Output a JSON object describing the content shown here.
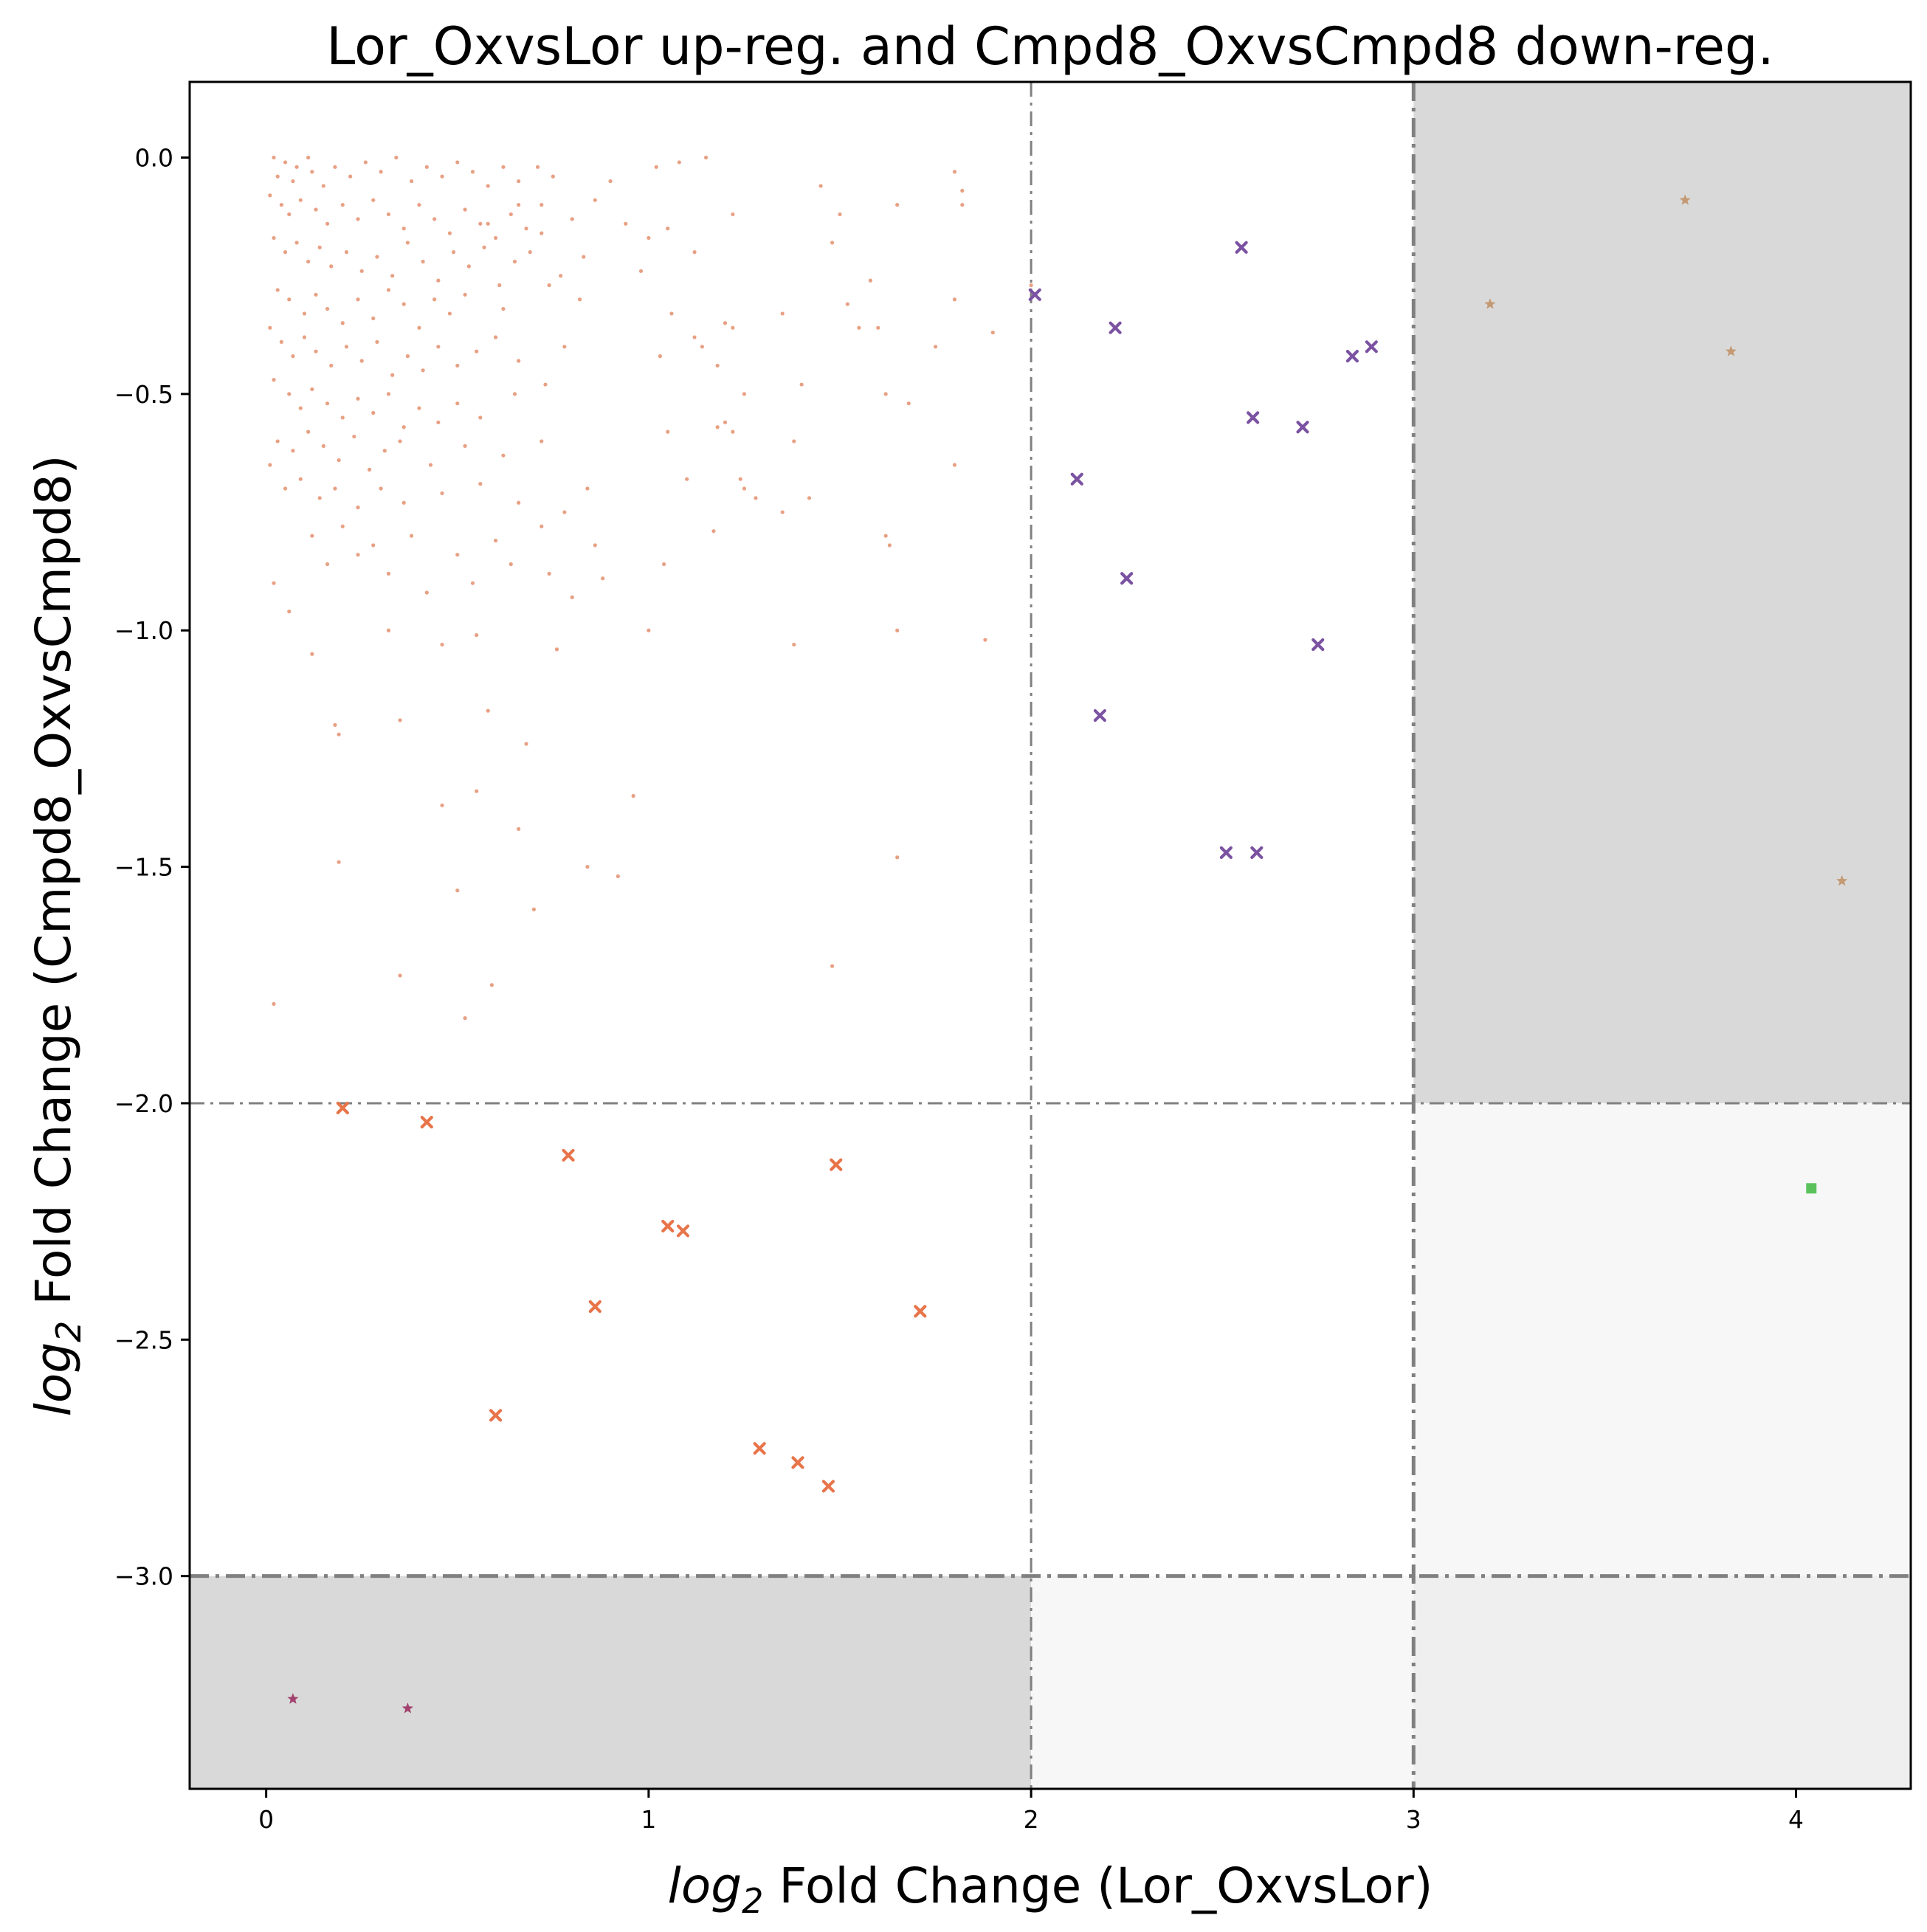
{
  "chart_data": {
    "type": "scatter",
    "title": "Lor_OxvsLor up-reg. and Cmpd8_OxvsCmpd8 down-reg.",
    "xlabel_prefix": "log",
    "xlabel_sub": "2",
    "xlabel_rest": " Fold Change (Lor_OxvsLor)",
    "ylabel_prefix": "log",
    "ylabel_sub": "2",
    "ylabel_rest": " Fold Change (Cmpd8_OxvsCmpd8)",
    "xlim": [
      -0.2,
      4.3
    ],
    "ylim": [
      -3.45,
      0.16
    ],
    "xticks": [
      0,
      1,
      2,
      3,
      4
    ],
    "xtick_labels": [
      "0",
      "1",
      "2",
      "3",
      "4"
    ],
    "yticks": [
      0.0,
      -0.5,
      -1.0,
      -1.5,
      -2.0,
      -2.5,
      -3.0
    ],
    "ytick_labels": [
      "0.0",
      "−0.5",
      "−1.0",
      "−1.5",
      "−2.0",
      "−2.5",
      "−3.0"
    ],
    "grid": false,
    "regions": [
      {
        "x": [
          3,
          4.3
        ],
        "y": [
          -2,
          0.16
        ],
        "color": "#d9d9d9"
      },
      {
        "x": [
          -0.2,
          2
        ],
        "y": [
          -3.45,
          -3
        ],
        "color": "#d9d9d9"
      },
      {
        "x": [
          3,
          4.3
        ],
        "y": [
          -3,
          -2
        ],
        "color": "#f7f7f7"
      },
      {
        "x": [
          2,
          3
        ],
        "y": [
          -3.45,
          -3
        ],
        "color": "#f7f7f7"
      },
      {
        "x": [
          3,
          4.3
        ],
        "y": [
          -3.45,
          -3
        ],
        "color": "#efefef"
      }
    ],
    "threshold_lines": [
      {
        "axis": "x",
        "value": 2,
        "style": "thin"
      },
      {
        "axis": "x",
        "value": 3,
        "style": "thick"
      },
      {
        "axis": "y",
        "value": -2,
        "style": "thin"
      },
      {
        "axis": "y",
        "value": -3,
        "style": "thick"
      }
    ],
    "series": [
      {
        "marker": "dot",
        "color": "#e0805a",
        "points": [
          [
            0.02,
            0.0
          ],
          [
            0.05,
            -0.01
          ],
          [
            0.08,
            -0.02
          ],
          [
            0.11,
            0.0
          ],
          [
            0.03,
            -0.04
          ],
          [
            0.07,
            -0.05
          ],
          [
            0.12,
            -0.03
          ],
          [
            0.15,
            -0.06
          ],
          [
            0.18,
            -0.02
          ],
          [
            0.22,
            -0.04
          ],
          [
            0.26,
            -0.01
          ],
          [
            0.3,
            -0.03
          ],
          [
            0.34,
            0.0
          ],
          [
            0.38,
            -0.05
          ],
          [
            0.42,
            -0.02
          ],
          [
            0.46,
            -0.04
          ],
          [
            0.5,
            -0.01
          ],
          [
            0.54,
            -0.03
          ],
          [
            0.58,
            -0.06
          ],
          [
            0.62,
            -0.02
          ],
          [
            0.66,
            -0.05
          ],
          [
            0.71,
            -0.02
          ],
          [
            0.75,
            -0.04
          ],
          [
            0.01,
            -0.08
          ],
          [
            0.04,
            -0.1
          ],
          [
            0.06,
            -0.12
          ],
          [
            0.09,
            -0.09
          ],
          [
            0.13,
            -0.11
          ],
          [
            0.16,
            -0.14
          ],
          [
            0.2,
            -0.1
          ],
          [
            0.24,
            -0.13
          ],
          [
            0.28,
            -0.09
          ],
          [
            0.32,
            -0.12
          ],
          [
            0.36,
            -0.15
          ],
          [
            0.4,
            -0.1
          ],
          [
            0.44,
            -0.13
          ],
          [
            0.48,
            -0.16
          ],
          [
            0.52,
            -0.11
          ],
          [
            0.56,
            -0.14
          ],
          [
            0.6,
            -0.17
          ],
          [
            0.64,
            -0.12
          ],
          [
            0.68,
            -0.15
          ],
          [
            0.72,
            -0.1
          ],
          [
            0.8,
            -0.13
          ],
          [
            0.86,
            -0.09
          ],
          [
            0.02,
            -0.17
          ],
          [
            0.05,
            -0.2
          ],
          [
            0.08,
            -0.18
          ],
          [
            0.11,
            -0.22
          ],
          [
            0.14,
            -0.19
          ],
          [
            0.17,
            -0.23
          ],
          [
            0.21,
            -0.2
          ],
          [
            0.25,
            -0.24
          ],
          [
            0.29,
            -0.21
          ],
          [
            0.33,
            -0.25
          ],
          [
            0.37,
            -0.18
          ],
          [
            0.41,
            -0.22
          ],
          [
            0.45,
            -0.26
          ],
          [
            0.49,
            -0.2
          ],
          [
            0.53,
            -0.23
          ],
          [
            0.57,
            -0.19
          ],
          [
            0.61,
            -0.27
          ],
          [
            0.65,
            -0.22
          ],
          [
            0.69,
            -0.2
          ],
          [
            0.77,
            -0.25
          ],
          [
            0.83,
            -0.21
          ],
          [
            0.03,
            -0.28
          ],
          [
            0.06,
            -0.3
          ],
          [
            0.1,
            -0.33
          ],
          [
            0.13,
            -0.29
          ],
          [
            0.16,
            -0.32
          ],
          [
            0.2,
            -0.35
          ],
          [
            0.24,
            -0.3
          ],
          [
            0.28,
            -0.34
          ],
          [
            0.32,
            -0.28
          ],
          [
            0.36,
            -0.31
          ],
          [
            0.4,
            -0.36
          ],
          [
            0.44,
            -0.3
          ],
          [
            0.48,
            -0.33
          ],
          [
            0.52,
            -0.29
          ],
          [
            0.62,
            -0.32
          ],
          [
            0.74,
            -0.27
          ],
          [
            0.82,
            -0.3
          ],
          [
            0.01,
            -0.36
          ],
          [
            0.04,
            -0.39
          ],
          [
            0.07,
            -0.42
          ],
          [
            0.1,
            -0.38
          ],
          [
            0.13,
            -0.41
          ],
          [
            0.17,
            -0.44
          ],
          [
            0.21,
            -0.4
          ],
          [
            0.25,
            -0.43
          ],
          [
            0.29,
            -0.39
          ],
          [
            0.33,
            -0.46
          ],
          [
            0.37,
            -0.42
          ],
          [
            0.41,
            -0.45
          ],
          [
            0.45,
            -0.4
          ],
          [
            0.5,
            -0.44
          ],
          [
            0.55,
            -0.41
          ],
          [
            0.6,
            -0.38
          ],
          [
            0.66,
            -0.43
          ],
          [
            0.78,
            -0.4
          ],
          [
            0.02,
            -0.47
          ],
          [
            0.06,
            -0.5
          ],
          [
            0.09,
            -0.53
          ],
          [
            0.12,
            -0.49
          ],
          [
            0.16,
            -0.52
          ],
          [
            0.2,
            -0.55
          ],
          [
            0.24,
            -0.51
          ],
          [
            0.28,
            -0.54
          ],
          [
            0.32,
            -0.5
          ],
          [
            0.36,
            -0.57
          ],
          [
            0.4,
            -0.53
          ],
          [
            0.45,
            -0.56
          ],
          [
            0.5,
            -0.52
          ],
          [
            0.56,
            -0.55
          ],
          [
            0.65,
            -0.5
          ],
          [
            0.73,
            -0.48
          ],
          [
            0.03,
            -0.6
          ],
          [
            0.07,
            -0.62
          ],
          [
            0.11,
            -0.58
          ],
          [
            0.15,
            -0.61
          ],
          [
            0.19,
            -0.64
          ],
          [
            0.23,
            -0.59
          ],
          [
            0.27,
            -0.66
          ],
          [
            0.31,
            -0.62
          ],
          [
            0.35,
            -0.6
          ],
          [
            0.43,
            -0.65
          ],
          [
            0.52,
            -0.61
          ],
          [
            0.62,
            -0.63
          ],
          [
            0.72,
            -0.6
          ],
          [
            0.01,
            -0.65
          ],
          [
            0.05,
            -0.7
          ],
          [
            0.09,
            -0.68
          ],
          [
            0.14,
            -0.72
          ],
          [
            0.18,
            -0.7
          ],
          [
            0.24,
            -0.74
          ],
          [
            0.3,
            -0.7
          ],
          [
            0.36,
            -0.73
          ],
          [
            0.46,
            -0.71
          ],
          [
            0.56,
            -0.69
          ],
          [
            0.66,
            -0.73
          ],
          [
            0.78,
            -0.75
          ],
          [
            0.84,
            -0.7
          ],
          [
            0.12,
            -0.8
          ],
          [
            0.2,
            -0.78
          ],
          [
            0.28,
            -0.82
          ],
          [
            0.38,
            -0.8
          ],
          [
            0.5,
            -0.84
          ],
          [
            0.6,
            -0.81
          ],
          [
            0.72,
            -0.78
          ],
          [
            0.86,
            -0.82
          ],
          [
            0.02,
            -0.9
          ],
          [
            0.06,
            -0.96
          ],
          [
            0.16,
            -0.86
          ],
          [
            0.24,
            -0.84
          ],
          [
            0.32,
            -0.88
          ],
          [
            0.42,
            -0.92
          ],
          [
            0.54,
            -0.9
          ],
          [
            0.64,
            -0.86
          ],
          [
            0.74,
            -0.88
          ],
          [
            0.8,
            -0.93
          ],
          [
            0.88,
            -0.89
          ],
          [
            0.12,
            -1.05
          ],
          [
            0.32,
            -1.0
          ],
          [
            0.46,
            -1.03
          ],
          [
            0.55,
            -1.01
          ],
          [
            0.76,
            -1.04
          ],
          [
            0.18,
            -1.2
          ],
          [
            0.35,
            -1.19
          ],
          [
            0.58,
            -1.17
          ],
          [
            0.68,
            -1.24
          ],
          [
            0.19,
            -1.22
          ],
          [
            0.46,
            -1.37
          ],
          [
            0.55,
            -1.34
          ],
          [
            0.66,
            -1.42
          ],
          [
            0.19,
            -1.49
          ],
          [
            0.5,
            -1.55
          ],
          [
            0.7,
            -1.59
          ],
          [
            0.84,
            -1.5
          ],
          [
            0.02,
            -1.79
          ],
          [
            0.35,
            -1.73
          ],
          [
            0.52,
            -1.82
          ],
          [
            0.59,
            -1.75
          ],
          [
            0.92,
            -1.52
          ],
          [
            0.96,
            -1.35
          ],
          [
            1.0,
            -0.17
          ],
          [
            1.02,
            -0.02
          ],
          [
            1.05,
            -0.15
          ],
          [
            1.08,
            -0.01
          ],
          [
            1.12,
            -0.2
          ],
          [
            1.15,
            0.0
          ],
          [
            1.03,
            -0.42
          ],
          [
            1.06,
            -0.33
          ],
          [
            1.12,
            -0.38
          ],
          [
            1.14,
            -0.4
          ],
          [
            1.18,
            -0.44
          ],
          [
            1.2,
            -0.35
          ],
          [
            1.22,
            -0.36
          ],
          [
            1.25,
            -0.5
          ],
          [
            1.22,
            -0.12
          ],
          [
            1.35,
            -0.33
          ],
          [
            1.38,
            -0.6
          ],
          [
            1.4,
            -0.48
          ],
          [
            1.45,
            -0.06
          ],
          [
            1.48,
            -0.18
          ],
          [
            1.5,
            -0.12
          ],
          [
            1.52,
            -0.31
          ],
          [
            1.55,
            -0.36
          ],
          [
            1.58,
            -0.26
          ],
          [
            1.6,
            -0.36
          ],
          [
            1.62,
            -0.5
          ],
          [
            1.65,
            -0.1
          ],
          [
            1.68,
            -0.52
          ],
          [
            1.75,
            -0.4
          ],
          [
            1.8,
            -0.3
          ],
          [
            1.8,
            -0.03
          ],
          [
            1.82,
            -0.07
          ],
          [
            1.82,
            -0.1
          ],
          [
            1.9,
            -0.37
          ],
          [
            1.05,
            -0.58
          ],
          [
            1.17,
            -0.79
          ],
          [
            1.2,
            -0.56
          ],
          [
            1.25,
            -0.7
          ],
          [
            1.28,
            -0.72
          ],
          [
            1.1,
            -0.68
          ],
          [
            1.18,
            -0.57
          ],
          [
            1.22,
            -0.58
          ],
          [
            1.24,
            -0.68
          ],
          [
            1.35,
            -0.75
          ],
          [
            1.42,
            -0.72
          ],
          [
            1.62,
            -0.8
          ],
          [
            1.63,
            -0.82
          ],
          [
            1.8,
            -0.65
          ],
          [
            1.38,
            -1.03
          ],
          [
            1.65,
            -1.0
          ],
          [
            1.88,
            -1.02
          ],
          [
            1.04,
            -0.86
          ],
          [
            1.0,
            -1.0
          ],
          [
            1.48,
            -1.71
          ],
          [
            1.65,
            -1.48
          ],
          [
            2.0,
            -0.27
          ],
          [
            0.58,
            -0.14
          ],
          [
            0.66,
            -0.1
          ],
          [
            0.72,
            -0.16
          ],
          [
            0.9,
            -0.05
          ],
          [
            0.94,
            -0.14
          ],
          [
            0.98,
            -0.24
          ]
        ]
      },
      {
        "marker": "x",
        "color": "#7b52a1",
        "points": [
          [
            2.01,
            -0.29
          ],
          [
            2.55,
            -0.19
          ],
          [
            2.22,
            -0.36
          ],
          [
            2.84,
            -0.42
          ],
          [
            2.89,
            -0.4
          ],
          [
            2.58,
            -0.55
          ],
          [
            2.71,
            -0.57
          ],
          [
            2.12,
            -0.68
          ],
          [
            2.25,
            -0.89
          ],
          [
            2.75,
            -1.03
          ],
          [
            2.18,
            -1.18
          ],
          [
            2.51,
            -1.47
          ],
          [
            2.59,
            -1.47
          ]
        ]
      },
      {
        "marker": "x",
        "color": "#e8744a",
        "points": [
          [
            0.2,
            -2.01
          ],
          [
            0.42,
            -2.04
          ],
          [
            0.79,
            -2.11
          ],
          [
            1.49,
            -2.13
          ],
          [
            1.05,
            -2.26
          ],
          [
            1.09,
            -2.27
          ],
          [
            0.86,
            -2.43
          ],
          [
            1.71,
            -2.44
          ],
          [
            0.6,
            -2.66
          ],
          [
            1.29,
            -2.73
          ],
          [
            1.39,
            -2.76
          ],
          [
            1.47,
            -2.81
          ]
        ]
      },
      {
        "marker": "star",
        "color": "#c49a74",
        "points": [
          [
            3.71,
            -0.09
          ],
          [
            3.2,
            -0.31
          ],
          [
            3.83,
            -0.41
          ],
          [
            4.12,
            -1.53
          ]
        ]
      },
      {
        "marker": "square",
        "color": "#5cc35c",
        "points": [
          [
            4.04,
            -2.18
          ]
        ]
      },
      {
        "marker": "star",
        "color": "#a3426e",
        "points": [
          [
            0.07,
            -3.26
          ],
          [
            0.37,
            -3.28
          ]
        ]
      }
    ]
  }
}
